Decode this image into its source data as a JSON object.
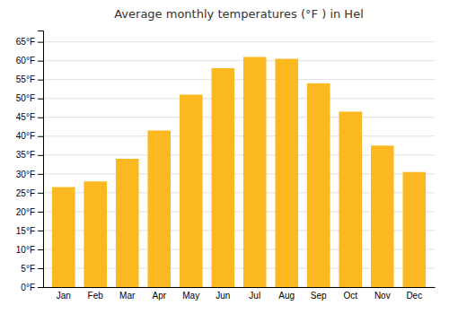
{
  "chart_data": {
    "type": "bar",
    "title": "Average monthly temperatures (°F ) in Hel",
    "categories": [
      "Jan",
      "Feb",
      "Mar",
      "Apr",
      "May",
      "Jun",
      "Jul",
      "Aug",
      "Sep",
      "Oct",
      "Nov",
      "Dec"
    ],
    "values": [
      26.5,
      28.0,
      34.0,
      41.5,
      51.0,
      58.0,
      61.0,
      60.5,
      54.0,
      46.5,
      37.5,
      30.5
    ],
    "color": "#FBB820",
    "ylim": [
      0,
      68
    ],
    "yticks": [
      {
        "value": 0,
        "label": "0°F"
      },
      {
        "value": 5,
        "label": "5°F"
      },
      {
        "value": 10,
        "label": "10°F"
      },
      {
        "value": 15,
        "label": "15°F"
      },
      {
        "value": 20,
        "label": "20°F"
      },
      {
        "value": 25,
        "label": "25°F"
      },
      {
        "value": 30,
        "label": "30°F"
      },
      {
        "value": 35,
        "label": "35°F"
      },
      {
        "value": 40,
        "label": "40°F"
      },
      {
        "value": 45,
        "label": "45°F"
      },
      {
        "value": 50,
        "label": "50°F"
      },
      {
        "value": 55,
        "label": "55°F"
      },
      {
        "value": 60,
        "label": "60°F"
      },
      {
        "value": 65,
        "label": "65°F"
      }
    ],
    "grid": true
  }
}
